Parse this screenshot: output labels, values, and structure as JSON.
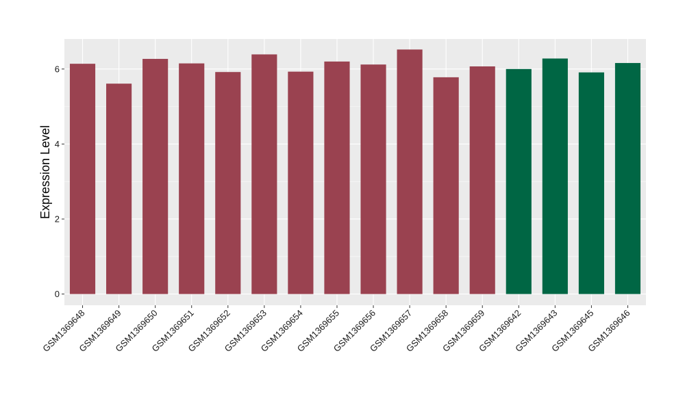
{
  "chart_data": {
    "type": "bar",
    "title": "",
    "xlabel": "",
    "ylabel": "Expression Level",
    "ylim": [
      -0.3,
      6.8
    ],
    "yticks": [
      0,
      2,
      4,
      6
    ],
    "grid": true,
    "legend": "none",
    "colors": {
      "panel_background": "#ebebeb",
      "grid_major": "#ffffff",
      "group_a": "#9a4250",
      "group_b": "#006644"
    },
    "categories": [
      "GSM1369648",
      "GSM1369649",
      "GSM1369650",
      "GSM1369651",
      "GSM1369652",
      "GSM1369653",
      "GSM1369654",
      "GSM1369655",
      "GSM1369656",
      "GSM1369657",
      "GSM1369658",
      "GSM1369659",
      "GSM1369642",
      "GSM1369643",
      "GSM1369645",
      "GSM1369646"
    ],
    "values": [
      6.14,
      5.61,
      6.27,
      6.15,
      5.92,
      6.39,
      5.93,
      6.2,
      6.12,
      6.52,
      5.78,
      6.07,
      6.0,
      6.28,
      5.91,
      6.16
    ],
    "bar_groups": [
      "a",
      "a",
      "a",
      "a",
      "a",
      "a",
      "a",
      "a",
      "a",
      "a",
      "a",
      "a",
      "b",
      "b",
      "b",
      "b"
    ]
  }
}
